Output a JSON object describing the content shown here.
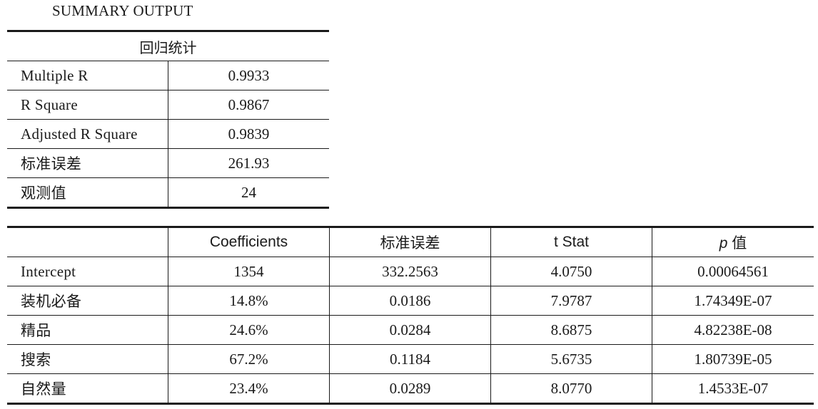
{
  "title": "SUMMARY OUTPUT",
  "regression_stats": {
    "header": "回归统计",
    "rows": [
      {
        "label": "Multiple R",
        "value": "0.9933"
      },
      {
        "label": "R Square",
        "value": "0.9867"
      },
      {
        "label": "Adjusted R Square",
        "value": "0.9839"
      },
      {
        "label": "标准误差",
        "value": "261.93"
      },
      {
        "label": "观测值",
        "value": "24"
      }
    ]
  },
  "coefficients": {
    "headers": [
      "",
      "Coefficients",
      "标准误差",
      "t Stat"
    ],
    "p_header_symbol": "p",
    "p_header_suffix": " 值",
    "rows": [
      {
        "label": "Intercept",
        "coef": "1354",
        "se": "332.2563",
        "t": "4.0750",
        "p": "0.00064561"
      },
      {
        "label": "装机必备",
        "coef": "14.8%",
        "se": "0.0186",
        "t": "7.9787",
        "p": "1.74349E-07"
      },
      {
        "label": "精品",
        "coef": "24.6%",
        "se": "0.0284",
        "t": "8.6875",
        "p": "4.82238E-08"
      },
      {
        "label": "搜索",
        "coef": "67.2%",
        "se": "0.1184",
        "t": "5.6735",
        "p": "1.80739E-05"
      },
      {
        "label": "自然量",
        "coef": "23.4%",
        "se": "0.0289",
        "t": "8.0770",
        "p": "1.4533E-07"
      }
    ]
  }
}
